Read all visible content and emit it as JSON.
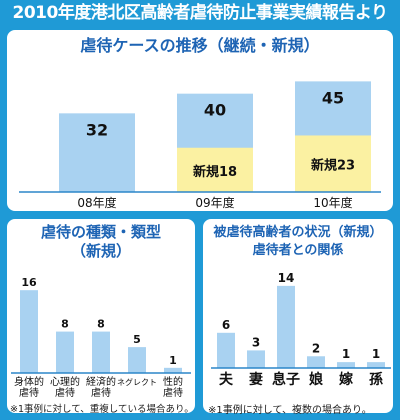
{
  "header": {
    "title": "2010年度港北区高齢者虐待防止事業実績報告より"
  },
  "colors": {
    "frame": "#1f9ad6",
    "bar_blue": "#a9d2f1",
    "bar_yellow": "#fbf1a2",
    "title_text": "#1e64b4",
    "baseline": "#2b86c9"
  },
  "panels": {
    "top": {
      "title": "虐待ケースの推移（継続・新規）"
    },
    "bottom_left": {
      "title_line1": "虐待の種類・類型",
      "title_line2": "（新規）",
      "note": "※1事例に対して、重複している場合あり。"
    },
    "bottom_right": {
      "title_line1": "被虐待高齢者の状況（新規）",
      "title_line2": "虐待者との関係",
      "note": "※1事例に対して、複数の場合あり。"
    }
  },
  "chart_data": [
    {
      "type": "bar",
      "title": "虐待ケースの推移（継続・新規）",
      "categories": [
        "08年度",
        "09年度",
        "10年度"
      ],
      "totals": [
        32,
        40,
        45
      ],
      "series": [
        {
          "name": "新規",
          "values": [
            null,
            18,
            23
          ],
          "labels": [
            "",
            "新規18",
            "新規23"
          ]
        }
      ],
      "ylim": [
        0,
        48
      ]
    },
    {
      "type": "bar",
      "title": "虐待の種類・類型（新規）",
      "categories": [
        "身体的\n虐待",
        "心理的\n虐待",
        "経済的\n虐待",
        "ネグレクト",
        "性的\n虐待"
      ],
      "values": [
        16,
        8,
        8,
        5,
        1
      ],
      "ylim": [
        0,
        17
      ]
    },
    {
      "type": "bar",
      "title": "被虐待高齢者の状況（新規）虐待者との関係",
      "categories": [
        "夫",
        "妻",
        "息子",
        "娘",
        "嫁",
        "孫"
      ],
      "values": [
        6,
        3,
        14,
        2,
        1,
        1
      ],
      "ylim": [
        0,
        15
      ]
    }
  ]
}
